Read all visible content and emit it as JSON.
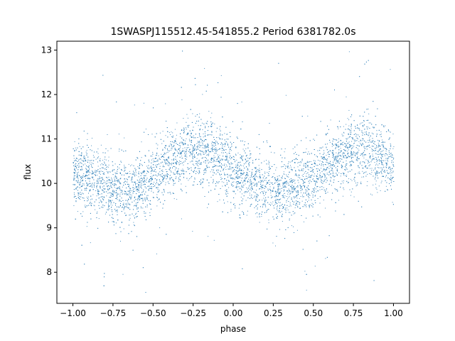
{
  "chart_data": {
    "type": "scatter",
    "title": "1SWASPJ115512.45-541855.2 Period 6381782.0s",
    "xlabel": "phase",
    "ylabel": "flux",
    "xlim": [
      -1.1,
      1.1
    ],
    "ylim": [
      7.3,
      13.2
    ],
    "xticks": [
      -1.0,
      -0.75,
      -0.5,
      -0.25,
      0.0,
      0.25,
      0.5,
      0.75,
      1.0
    ],
    "xtick_labels": [
      "−1.00",
      "−0.75",
      "−0.50",
      "−0.25",
      "0.00",
      "0.25",
      "0.50",
      "0.75",
      "1.00"
    ],
    "yticks": [
      8,
      9,
      10,
      11,
      12,
      13
    ],
    "ytick_labels": [
      "8",
      "9",
      "10",
      "11",
      "12",
      "13"
    ],
    "grid": false,
    "legend": "none",
    "point_color": "#1f77b4",
    "series": [
      {
        "phase_profile_x": [
          -1.0,
          -0.9,
          -0.8,
          -0.7,
          -0.6,
          -0.5,
          -0.4,
          -0.3,
          -0.2,
          -0.1,
          0.0,
          0.1,
          0.2,
          0.3,
          0.4,
          0.5,
          0.6,
          0.7,
          0.8,
          0.9,
          1.0
        ],
        "phase_profile_y": [
          10.2,
          10.1,
          9.95,
          9.85,
          9.9,
          10.1,
          10.45,
          10.7,
          10.75,
          10.6,
          10.3,
          10.05,
          9.9,
          9.85,
          9.95,
          10.15,
          10.45,
          10.7,
          10.8,
          10.65,
          10.35
        ]
      }
    ]
  }
}
